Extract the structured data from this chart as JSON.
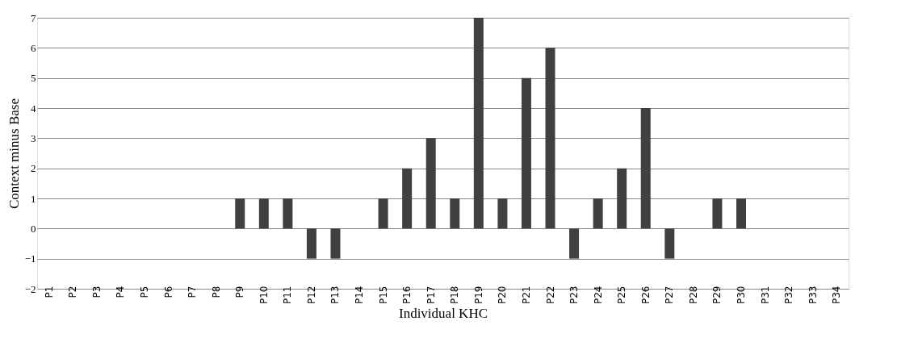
{
  "chart_data": {
    "type": "bar",
    "xlabel": "Individual KHC",
    "ylabel": "Context minus Base",
    "categories": [
      "P1",
      "P2",
      "P3",
      "P4",
      "P5",
      "P6",
      "P7",
      "P8",
      "P9",
      "P10",
      "P11",
      "P12",
      "P13",
      "P14",
      "P15",
      "P16",
      "P17",
      "P18",
      "P19",
      "P20",
      "P21",
      "P22",
      "P23",
      "P24",
      "P25",
      "P26",
      "P27",
      "P28",
      "P29",
      "P30",
      "P31",
      "P32",
      "P33",
      "P34"
    ],
    "values": [
      0,
      0,
      0,
      0,
      0,
      0,
      0,
      0,
      1,
      1,
      1,
      -1,
      -1,
      0,
      1,
      2,
      3,
      1,
      7,
      1,
      5,
      6,
      -1,
      1,
      2,
      4,
      -1,
      0,
      1,
      1,
      0,
      0,
      0,
      0
    ],
    "color": "#404040",
    "ylim": [
      -2,
      7
    ],
    "yticks": [
      -2,
      -1,
      0,
      1,
      2,
      3,
      4,
      5,
      6,
      7
    ],
    "grid": "y"
  }
}
